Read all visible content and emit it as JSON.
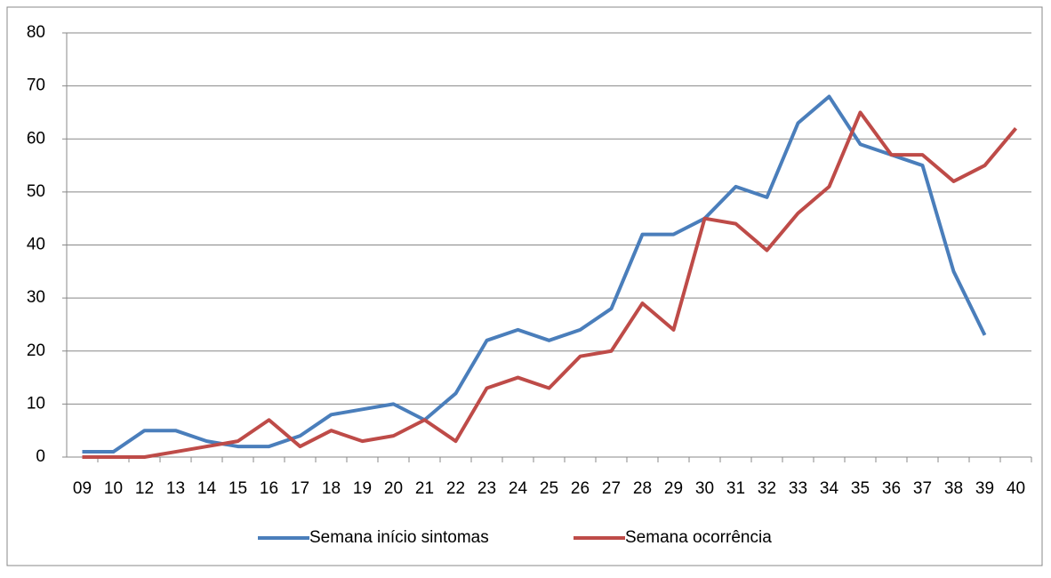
{
  "chart_data": {
    "type": "line",
    "categories": [
      "09",
      "10",
      "12",
      "13",
      "14",
      "15",
      "16",
      "17",
      "18",
      "19",
      "20",
      "21",
      "22",
      "23",
      "24",
      "25",
      "26",
      "27",
      "28",
      "29",
      "30",
      "31",
      "32",
      "33",
      "34",
      "35",
      "36",
      "37",
      "38",
      "39",
      "40"
    ],
    "series": [
      {
        "name": "Semana início sintomas",
        "color": "#4a7ebb",
        "values": [
          1,
          1,
          5,
          5,
          3,
          2,
          2,
          4,
          8,
          9,
          10,
          7,
          12,
          22,
          24,
          22,
          24,
          28,
          42,
          42,
          45,
          51,
          49,
          63,
          68,
          59,
          57,
          55,
          35,
          23,
          null
        ]
      },
      {
        "name": "Semana ocorrência",
        "color": "#be4b48",
        "values": [
          0,
          0,
          0,
          1,
          2,
          3,
          7,
          2,
          5,
          3,
          4,
          7,
          3,
          13,
          15,
          13,
          19,
          20,
          29,
          24,
          45,
          44,
          39,
          46,
          51,
          65,
          57,
          57,
          52,
          55,
          62
        ]
      }
    ],
    "ylim": [
      0,
      80
    ],
    "yticks": [
      0,
      10,
      20,
      30,
      40,
      50,
      60,
      70,
      80
    ],
    "grid": true,
    "legend": "bottom"
  }
}
